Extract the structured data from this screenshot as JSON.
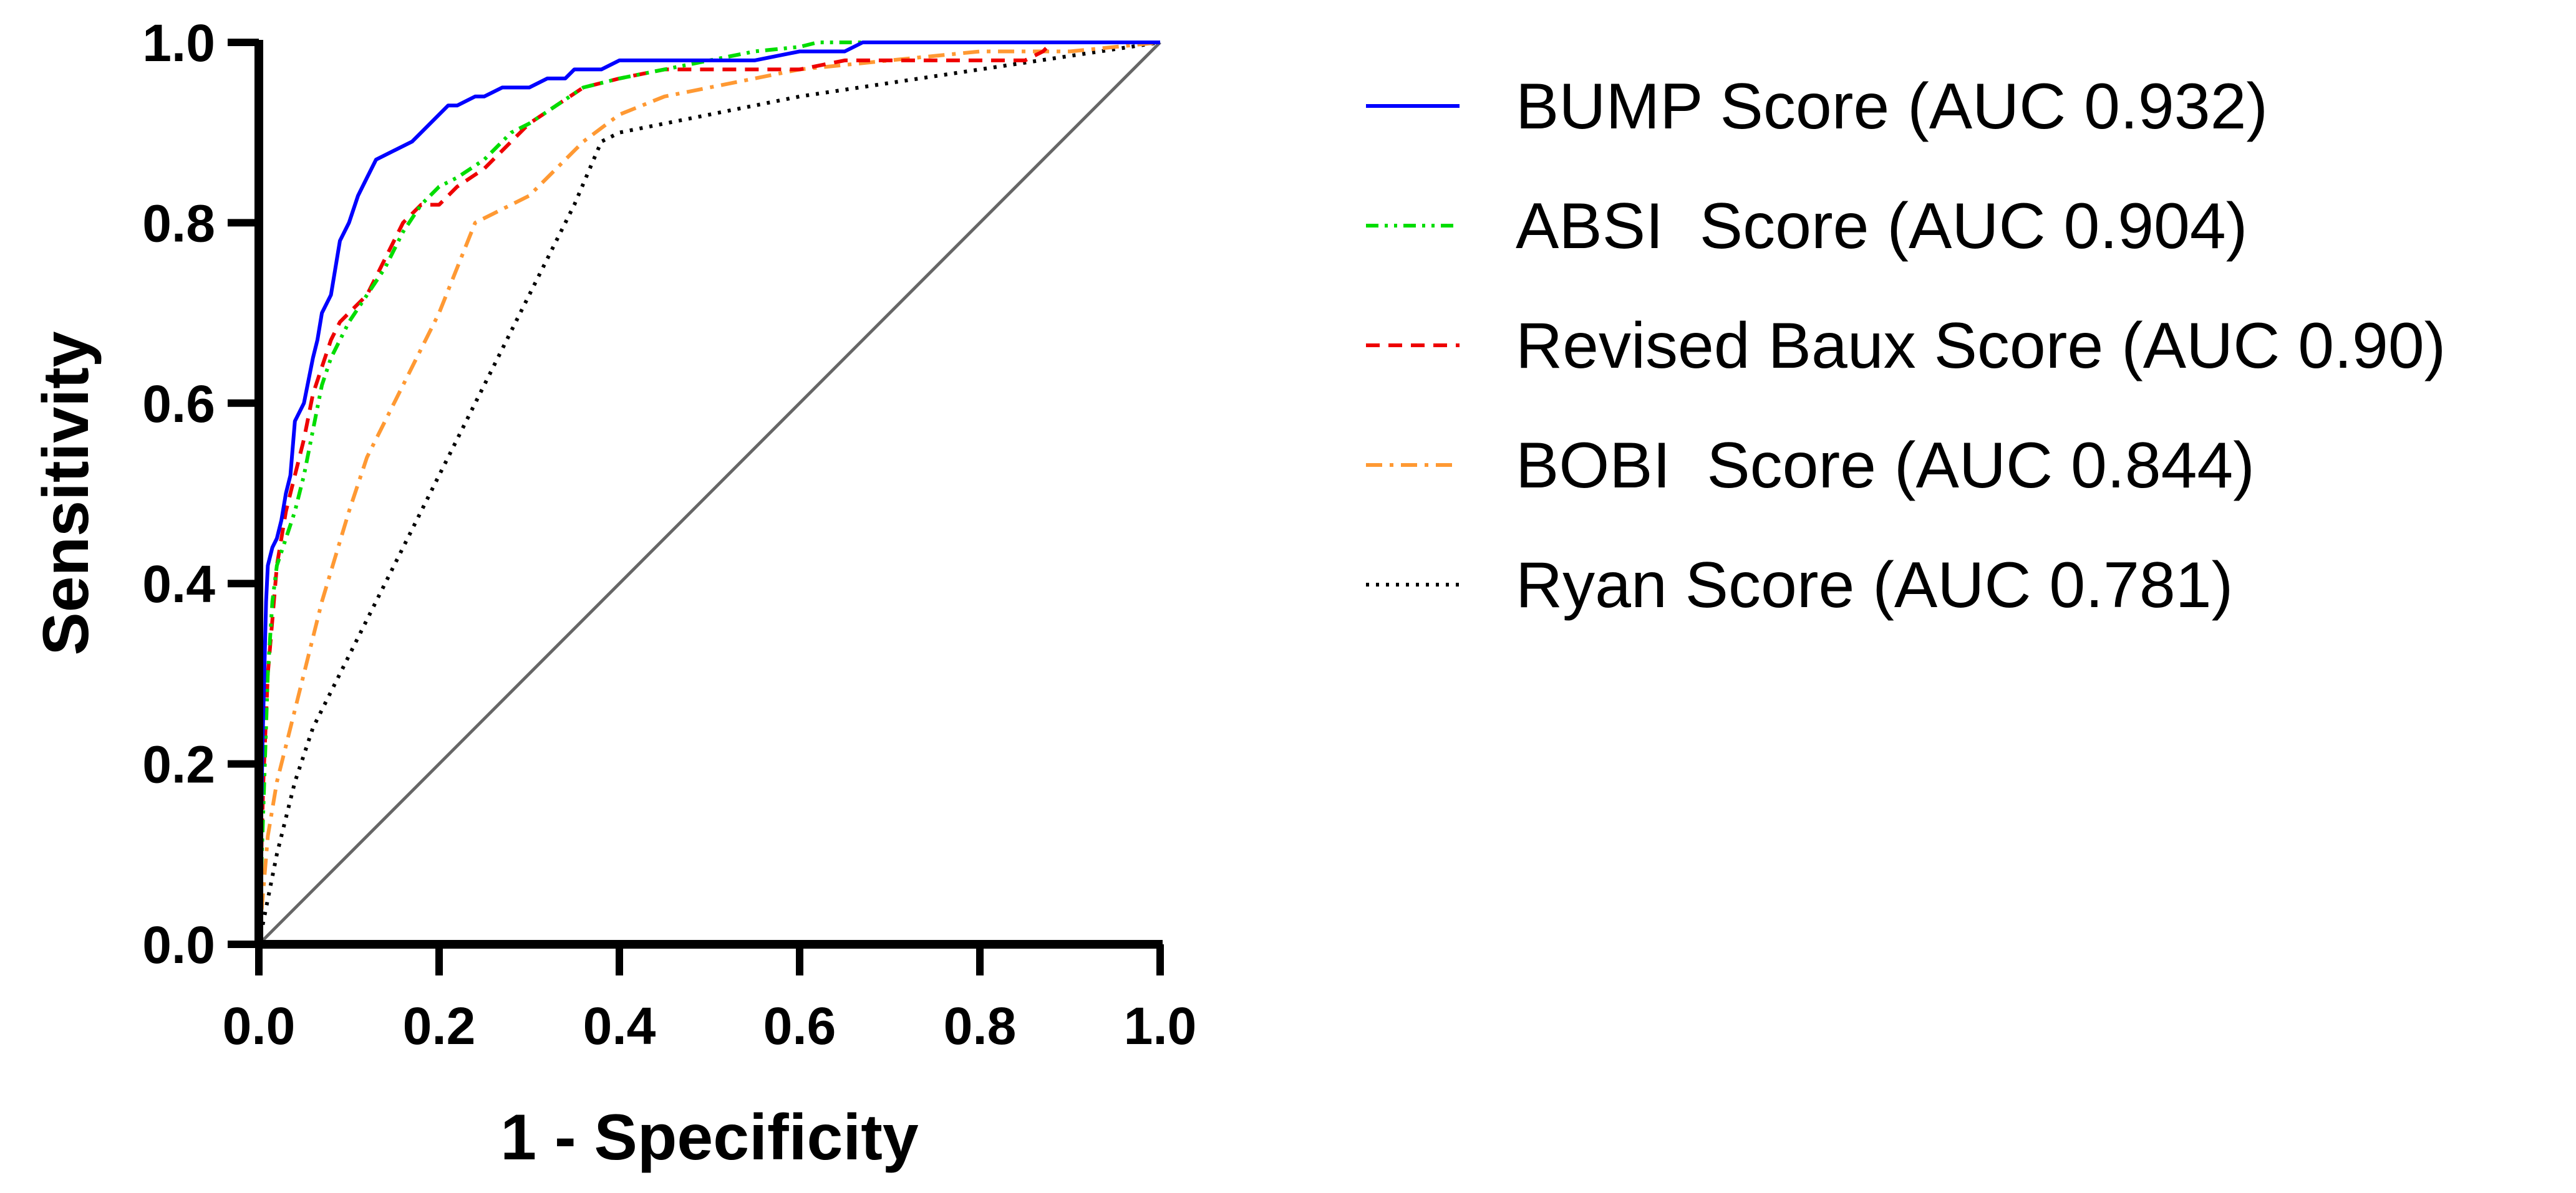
{
  "chart_data": {
    "type": "line",
    "title": "",
    "xlabel": "1 - Specificity",
    "ylabel": "Sensitivity",
    "xlim": [
      0,
      1
    ],
    "ylim": [
      0,
      1
    ],
    "x_ticks": [
      "0.0",
      "0.2",
      "0.4",
      "0.6",
      "0.8",
      "1.0"
    ],
    "y_ticks": [
      "0.0",
      "0.2",
      "0.4",
      "0.6",
      "0.8",
      "1.0"
    ],
    "grid": false,
    "legend_position": "right",
    "reference_line": {
      "x": [
        0,
        1
      ],
      "y": [
        0,
        1
      ],
      "color": "#666666"
    },
    "series": [
      {
        "name": "BUMP Score (AUC 0.932)",
        "color": "#0000ff",
        "dash": "solid",
        "x": [
          0,
          0.002,
          0.004,
          0.006,
          0.008,
          0.01,
          0.015,
          0.02,
          0.025,
          0.03,
          0.035,
          0.04,
          0.05,
          0.06,
          0.065,
          0.07,
          0.08,
          0.09,
          0.1,
          0.11,
          0.12,
          0.13,
          0.15,
          0.17,
          0.18,
          0.2,
          0.21,
          0.22,
          0.24,
          0.25,
          0.27,
          0.3,
          0.32,
          0.34,
          0.35,
          0.38,
          0.4,
          0.45,
          0.5,
          0.55,
          0.6,
          0.65,
          0.67,
          0.7,
          0.8,
          0.9,
          1.0
        ],
        "y": [
          0,
          0.1,
          0.22,
          0.3,
          0.38,
          0.42,
          0.44,
          0.45,
          0.47,
          0.5,
          0.52,
          0.58,
          0.6,
          0.65,
          0.67,
          0.7,
          0.72,
          0.78,
          0.8,
          0.83,
          0.85,
          0.87,
          0.88,
          0.89,
          0.9,
          0.92,
          0.93,
          0.93,
          0.94,
          0.94,
          0.95,
          0.95,
          0.96,
          0.96,
          0.97,
          0.97,
          0.98,
          0.98,
          0.98,
          0.98,
          0.99,
          0.99,
          1.0,
          1.0,
          1.0,
          1.0,
          1.0
        ]
      },
      {
        "name": "ABSI  Score (AUC 0.904)",
        "color": "#00dd00",
        "dash": "dash-dot-dot",
        "x": [
          0,
          0.005,
          0.01,
          0.015,
          0.02,
          0.03,
          0.04,
          0.05,
          0.06,
          0.07,
          0.08,
          0.09,
          0.1,
          0.12,
          0.14,
          0.16,
          0.18,
          0.2,
          0.22,
          0.25,
          0.28,
          0.3,
          0.33,
          0.36,
          0.4,
          0.45,
          0.5,
          0.55,
          0.6,
          0.62,
          0.65,
          0.7,
          0.8,
          0.9,
          1.0
        ],
        "y": [
          0,
          0.15,
          0.3,
          0.38,
          0.42,
          0.45,
          0.48,
          0.52,
          0.57,
          0.62,
          0.65,
          0.67,
          0.69,
          0.72,
          0.75,
          0.79,
          0.82,
          0.84,
          0.85,
          0.87,
          0.9,
          0.91,
          0.93,
          0.95,
          0.96,
          0.97,
          0.98,
          0.99,
          0.995,
          1.0,
          1.0,
          1.0,
          1.0,
          1.0,
          1.0
        ]
      },
      {
        "name": "Revised Baux Score (AUC 0.90)",
        "color": "#ee0000",
        "dash": "dash",
        "x": [
          0,
          0.005,
          0.01,
          0.015,
          0.02,
          0.03,
          0.04,
          0.05,
          0.06,
          0.07,
          0.08,
          0.09,
          0.1,
          0.12,
          0.14,
          0.16,
          0.18,
          0.2,
          0.22,
          0.25,
          0.28,
          0.3,
          0.33,
          0.36,
          0.4,
          0.45,
          0.5,
          0.55,
          0.6,
          0.65,
          0.7,
          0.8,
          0.85,
          0.87,
          0.88,
          0.9,
          1.0
        ],
        "y": [
          0,
          0.18,
          0.3,
          0.36,
          0.42,
          0.48,
          0.52,
          0.56,
          0.61,
          0.64,
          0.67,
          0.69,
          0.7,
          0.72,
          0.76,
          0.8,
          0.82,
          0.82,
          0.84,
          0.86,
          0.89,
          0.91,
          0.93,
          0.95,
          0.96,
          0.97,
          0.97,
          0.97,
          0.97,
          0.98,
          0.98,
          0.98,
          0.98,
          0.99,
          1.0,
          1.0,
          1.0
        ]
      },
      {
        "name": "BOBI  Score (AUC 0.844)",
        "color": "#ff9933",
        "dash": "dash-dot",
        "x": [
          0,
          0.01,
          0.02,
          0.03,
          0.05,
          0.07,
          0.1,
          0.12,
          0.15,
          0.18,
          0.2,
          0.24,
          0.26,
          0.3,
          0.33,
          0.36,
          0.4,
          0.45,
          0.5,
          0.55,
          0.6,
          0.7,
          0.8,
          0.9,
          1.0
        ],
        "y": [
          0,
          0.12,
          0.18,
          0.22,
          0.3,
          0.38,
          0.48,
          0.54,
          0.6,
          0.66,
          0.7,
          0.8,
          0.81,
          0.83,
          0.86,
          0.89,
          0.92,
          0.94,
          0.95,
          0.96,
          0.97,
          0.98,
          0.99,
          0.99,
          1.0
        ]
      },
      {
        "name": "Ryan Score (AUC 0.781)",
        "color": "#000000",
        "dash": "dot",
        "x": [
          0,
          0.01,
          0.02,
          0.04,
          0.06,
          0.08,
          0.1,
          0.12,
          0.15,
          0.2,
          0.25,
          0.3,
          0.35,
          0.38,
          0.4,
          0.5,
          0.6,
          0.7,
          0.8,
          0.9,
          1.0
        ],
        "y": [
          0,
          0.05,
          0.1,
          0.18,
          0.24,
          0.28,
          0.32,
          0.36,
          0.42,
          0.52,
          0.62,
          0.72,
          0.82,
          0.89,
          0.9,
          0.92,
          0.94,
          0.955,
          0.97,
          0.985,
          1.0
        ]
      }
    ]
  }
}
